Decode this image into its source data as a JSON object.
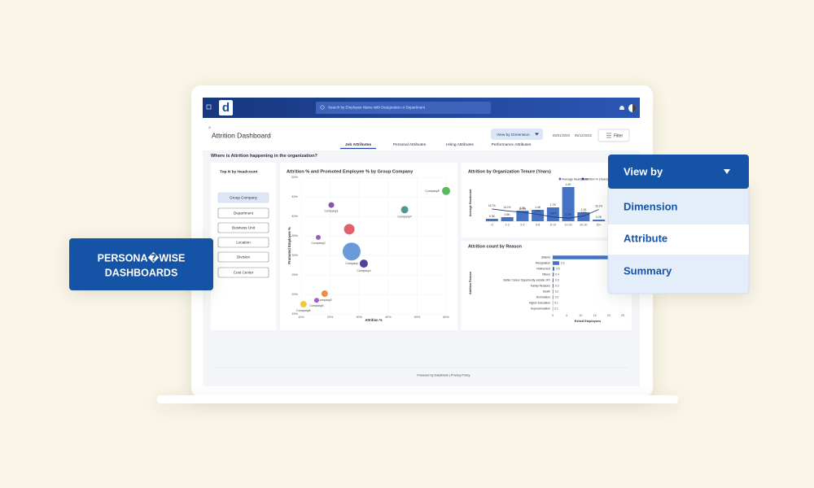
{
  "app": {
    "logo": "d",
    "search": "Search by Employee Name with Designation or Department"
  },
  "page": {
    "title": "Attrition Dashboard",
    "view_button": "View by Dimension",
    "date_from": "05/01/2020",
    "date_to": "05/12/2022",
    "filter": "Filter",
    "tabs": [
      "Job Attributes",
      "Personal Attributes",
      "Hiring Attributes",
      "Performance Attributes"
    ],
    "active_tab": 0,
    "question": "Where is Attrition happening in the organization?"
  },
  "sidebar": {
    "title": "Top N by Headcount",
    "buttons": [
      "Group Company",
      "Department",
      "Business Unit",
      "Location",
      "Division",
      "Cost Center"
    ],
    "active": 0
  },
  "chart_data": [
    {
      "type": "scatter",
      "title": "Attrition % and Promoted Employee % by Group Company",
      "x_label": "Attrition %",
      "y_label": "Promoted Employee %",
      "xlim": [
        10,
        60
      ],
      "ylim": [
        15,
        50
      ],
      "xticks": [
        {
          "value": 10,
          "label": "10%"
        },
        {
          "value": 20,
          "label": "20%"
        },
        {
          "value": 30,
          "label": "30%"
        },
        {
          "value": 40,
          "label": "40%"
        },
        {
          "value": 50,
          "label": "50%"
        },
        {
          "value": 60,
          "label": "60%"
        }
      ],
      "yticks": [
        {
          "value": 15,
          "label": "15%"
        },
        {
          "value": 20,
          "label": "20%"
        },
        {
          "value": 25,
          "label": "25%"
        },
        {
          "value": 30,
          "label": "30%"
        },
        {
          "value": 35,
          "label": "35%"
        },
        {
          "value": 40,
          "label": "40%"
        },
        {
          "value": 45,
          "label": "45%"
        },
        {
          "value": 50,
          "label": "50%"
        }
      ],
      "labels": [
        "Company8",
        "Company1",
        "Company7",
        null,
        "Company2",
        "Company",
        "Company4",
        "Company3",
        "Company5",
        "Company6"
      ],
      "x": [
        60,
        20.4,
        45.7,
        26.6,
        15.9,
        27.4,
        31.6,
        18.1,
        15.3,
        10.8
      ],
      "values": [
        46.5,
        42.9,
        41.7,
        36.7,
        34.6,
        31,
        27.9,
        20.2,
        18.5,
        17.5
      ],
      "sizes": [
        5,
        3.5,
        4.5,
        6.5,
        3,
        11,
        5,
        4,
        3,
        4
      ],
      "colors": [
        "#4caf50",
        "#7b3fa0",
        "#3d8c8c",
        "#e0505f",
        "#8e4bb0",
        "#5b8fd6",
        "#3a2f8f",
        "#f07e3a",
        "#9a4fc0",
        "#f2c12e"
      ]
    },
    {
      "type": "bar",
      "title": "Attrition by Organization Tenure (Years)",
      "y_label": "Average Headcount",
      "categories": [
        "<1",
        "1-2",
        "2-5",
        "5-8",
        "8-10",
        "10-20",
        "20-30",
        "30+"
      ],
      "ylim": [
        0,
        4.5
      ],
      "y2lim": [
        0,
        50
      ],
      "series": [
        {
          "name": "Average Headcount",
          "color": "#4472c4",
          "values": [
            0.3,
            0.5,
            1.3,
            1.4,
            1.7,
            4.2,
            1.1,
            0.2
          ],
          "value_labels": [
            "0.3K",
            "0.5K",
            "1.3K",
            "1.4K",
            "1.7K",
            "4.2K",
            "1.1K",
            "0.2K"
          ]
        },
        {
          "name": "Attrition % (Years)",
          "color": "#1f3a7a",
          "axis": "y2",
          "values": [
            16.7,
            14.1,
            12.2,
            9.5,
            5.8,
            4.3,
            7.1,
            16.1
          ],
          "value_labels": [
            "16.7%",
            "14.1%",
            "12.2%",
            "9.5%",
            "5.8%",
            "4.3%",
            "7.1%",
            "16.1%"
          ]
        }
      ]
    },
    {
      "type": "hbar",
      "title": "Attrition count by Reason",
      "x_label": "Exited Employees",
      "y_label": "Attrition Reason",
      "color": "#4472c4",
      "categories": [
        "(Blank)",
        "Resignation",
        "Retirement",
        "Others",
        "Better Career Opportunity outside JFF",
        "Family Reasons",
        "Death",
        "Termination",
        "Higher Education",
        "Superannuation"
      ],
      "values": [
        24,
        2.3,
        0.6,
        0.4,
        0.3,
        0.3,
        0.2,
        0.2,
        0.1,
        0.1
      ],
      "xlim": [
        0,
        25
      ],
      "xticks": [
        0,
        5,
        10,
        15,
        20,
        25
      ]
    }
  ],
  "footer": {
    "powered": "Powered by DataMonk | Privacy Policy"
  },
  "badge": {
    "lines": [
      "PERSONA�WISE",
      "DASHBOARDS"
    ]
  },
  "dropdown": {
    "label": "View by",
    "options": [
      "Dimension",
      "Attribute",
      "Summary"
    ],
    "highlighted": 1
  }
}
